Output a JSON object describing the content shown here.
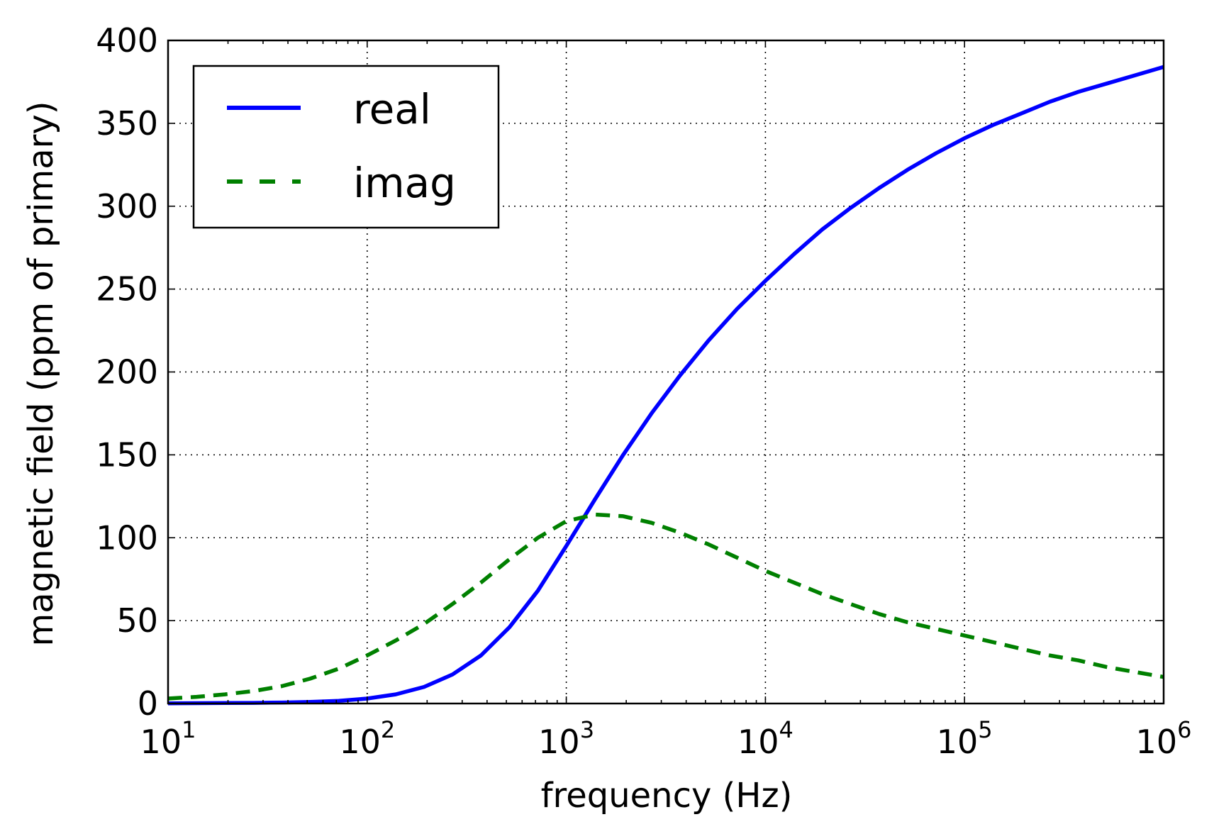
{
  "chart_data": {
    "type": "line",
    "title": "",
    "xlabel": "frequency (Hz)",
    "ylabel": "magnetic field (ppm of primary)",
    "xscale": "log",
    "xlim": [
      10,
      1000000
    ],
    "ylim": [
      0,
      400
    ],
    "grid": true,
    "legend": "upper-left",
    "x_ticks": [
      {
        "base": "10",
        "exp": "1",
        "value": 10
      },
      {
        "base": "10",
        "exp": "2",
        "value": 100
      },
      {
        "base": "10",
        "exp": "3",
        "value": 1000
      },
      {
        "base": "10",
        "exp": "4",
        "value": 10000
      },
      {
        "base": "10",
        "exp": "5",
        "value": 100000
      },
      {
        "base": "10",
        "exp": "6",
        "value": 1000000
      }
    ],
    "y_ticks": [
      "0",
      "50",
      "100",
      "150",
      "200",
      "250",
      "300",
      "350",
      "400"
    ],
    "x": [
      10,
      13.9,
      19.3,
      26.8,
      37.3,
      51.8,
      72,
      100,
      139,
      193,
      268,
      373,
      518,
      720,
      1000,
      1390,
      1930,
      2680,
      3730,
      5180,
      7200,
      10000,
      13900,
      19300,
      26800,
      37300,
      51800,
      72000,
      100000,
      139000,
      193000,
      268000,
      373000,
      518000,
      720000,
      1000000
    ],
    "series": [
      {
        "name": "real",
        "color": "#0000ff",
        "style": "solid",
        "values": [
          0.1,
          0.2,
          0.3,
          0.4,
          0.6,
          1,
          1.6,
          3,
          5.5,
          10,
          17.5,
          29,
          46,
          68,
          95,
          123,
          150,
          175,
          198,
          219,
          238,
          255,
          271,
          286,
          299,
          311,
          322,
          332,
          341,
          349,
          356,
          363,
          369,
          374,
          379,
          384
        ]
      },
      {
        "name": "imag",
        "color": "#008000",
        "style": "dashed",
        "values": [
          3,
          4,
          5.5,
          7.5,
          10.5,
          15,
          21,
          29,
          38,
          48,
          60,
          73,
          87,
          100,
          110,
          114,
          113,
          109,
          103,
          96,
          88,
          80,
          73,
          66,
          60,
          54,
          49,
          45,
          41,
          37,
          33,
          29,
          26,
          22,
          19,
          16
        ]
      }
    ]
  }
}
